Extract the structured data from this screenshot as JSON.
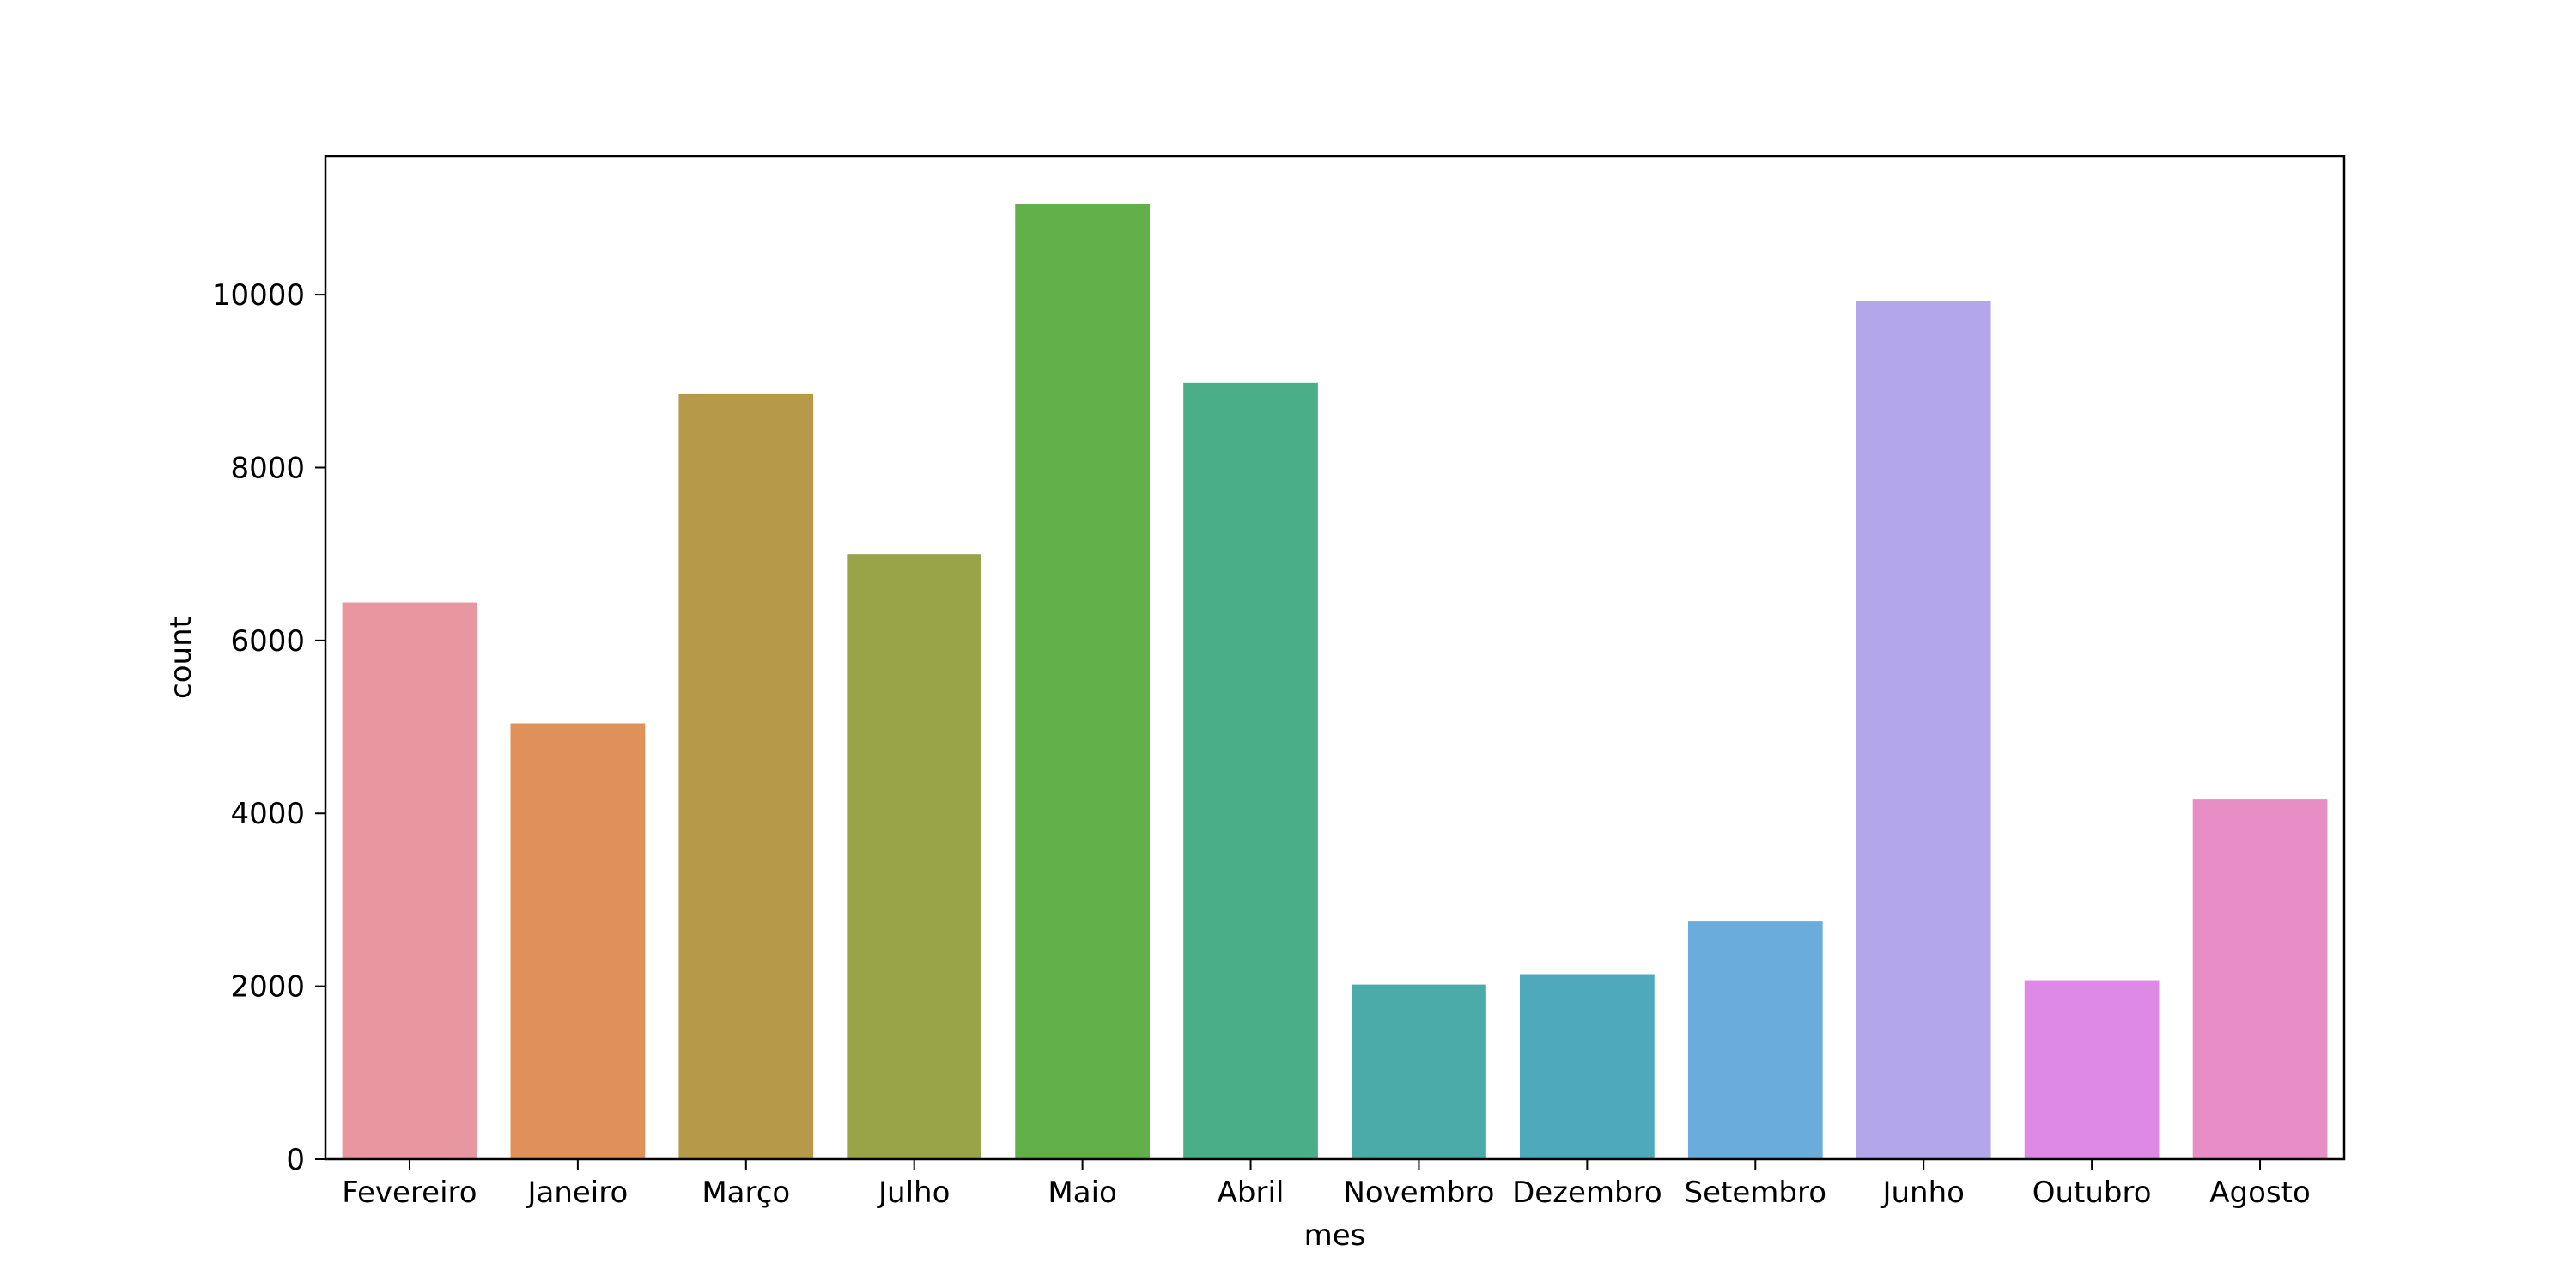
{
  "chart_data": {
    "type": "bar",
    "title": "",
    "xlabel": "mes",
    "ylabel": "count",
    "categories": [
      "Fevereiro",
      "Janeiro",
      "Março",
      "Julho",
      "Maio",
      "Abril",
      "Novembro",
      "Dezembro",
      "Setembro",
      "Junho",
      "Outubro",
      "Agosto"
    ],
    "values": [
      6440,
      5040,
      8850,
      7000,
      11050,
      8980,
      2020,
      2140,
      2750,
      9930,
      2070,
      4160
    ],
    "colors": [
      "#e8969f",
      "#e0915a",
      "#b69a49",
      "#99a348",
      "#61b04a",
      "#4aae89",
      "#4aaba8",
      "#4ea9bc",
      "#6aaddd",
      "#b4a6ea",
      "#df89e6",
      "#e68ec5"
    ],
    "yticks": [
      0,
      2000,
      4000,
      6000,
      8000,
      10000
    ],
    "ylim": [
      0,
      11600
    ],
    "grid": false,
    "legend": false
  }
}
